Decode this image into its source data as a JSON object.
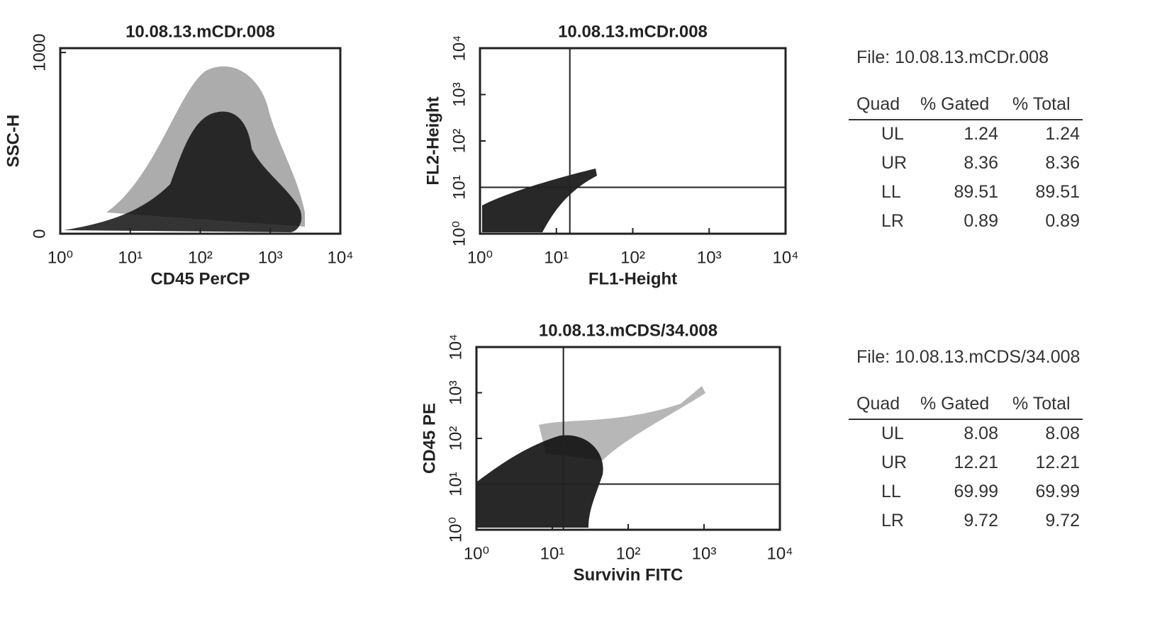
{
  "chart_data": [
    {
      "type": "scatter",
      "title": "10.08.13.mCDr.008",
      "x_label": "CD45 PerCP",
      "y_label": "SSC-H",
      "log_x": true,
      "log_y": false,
      "xlim": [
        1,
        10000
      ],
      "ylim": [
        0,
        1024
      ],
      "xticks": [
        {
          "value": 1,
          "label": "10⁰"
        },
        {
          "value": 10,
          "label": "10¹"
        },
        {
          "value": 100,
          "label": "10²"
        },
        {
          "value": 1000,
          "label": "10³"
        },
        {
          "value": 10000,
          "label": "10⁴"
        }
      ],
      "yticks": [
        0,
        1000
      ]
    },
    {
      "type": "scatter",
      "title": "10.08.13.mCDr.008",
      "x_label": "FL1-Height",
      "y_label": "FL2-Height",
      "log_x": true,
      "log_y": true,
      "xlim": [
        1,
        10000
      ],
      "ylim": [
        1,
        10000
      ],
      "xticks": [
        {
          "value": 1,
          "label": "10⁰"
        },
        {
          "value": 10,
          "label": "10¹"
        },
        {
          "value": 100,
          "label": "10²"
        },
        {
          "value": 1000,
          "label": "10³"
        },
        {
          "value": 10000,
          "label": "10⁴"
        }
      ],
      "yticks": [
        {
          "value": 1,
          "label": "10⁰"
        },
        {
          "value": 10,
          "label": "10¹"
        },
        {
          "value": 100,
          "label": "10²"
        },
        {
          "value": 1000,
          "label": "10³"
        },
        {
          "value": 10000,
          "label": "10⁴"
        }
      ],
      "quadrant": {
        "x": 15,
        "y": 10
      }
    },
    {
      "type": "scatter",
      "title": "10.08.13.mCDS/34.008",
      "x_label": "Survivin FITC",
      "y_label": "CD45 PE",
      "log_x": true,
      "log_y": true,
      "xlim": [
        1,
        10000
      ],
      "ylim": [
        1,
        10000
      ],
      "xticks": [
        {
          "value": 1,
          "label": "10⁰"
        },
        {
          "value": 10,
          "label": "10¹"
        },
        {
          "value": 100,
          "label": "10²"
        },
        {
          "value": 1000,
          "label": "10³"
        },
        {
          "value": 10000,
          "label": "10⁴"
        }
      ],
      "yticks": [
        {
          "value": 1,
          "label": "10⁰"
        },
        {
          "value": 10,
          "label": "10¹"
        },
        {
          "value": 100,
          "label": "10²"
        },
        {
          "value": 1000,
          "label": "10³"
        },
        {
          "value": 10000,
          "label": "10⁴"
        }
      ],
      "quadrant": {
        "x": 14,
        "y": 10
      }
    }
  ],
  "tables": [
    {
      "file": "File: 10.08.13.mCDr.008",
      "headers": [
        "Quad",
        "% Gated",
        "% Total"
      ],
      "rows": [
        [
          "UL",
          "1.24",
          "1.24"
        ],
        [
          "UR",
          "8.36",
          "8.36"
        ],
        [
          "LL",
          "89.51",
          "89.51"
        ],
        [
          "LR",
          "0.89",
          "0.89"
        ]
      ]
    },
    {
      "file": "File: 10.08.13.mCDS/34.008",
      "headers": [
        "Quad",
        "% Gated",
        "% Total"
      ],
      "rows": [
        [
          "UL",
          "8.08",
          "8.08"
        ],
        [
          "UR",
          "12.21",
          "12.21"
        ],
        [
          "LL",
          "69.99",
          "69.99"
        ],
        [
          "LR",
          "9.72",
          "9.72"
        ]
      ]
    }
  ]
}
